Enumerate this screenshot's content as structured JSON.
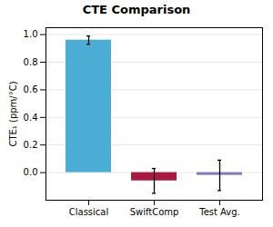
{
  "chart_data": {
    "type": "bar",
    "title": "CTE Comparison",
    "ylabel": "CTE₁ (ppm/°C)",
    "categories": [
      "Classical",
      "SwiftComp",
      "Test Avg."
    ],
    "values": [
      0.96,
      -0.06,
      -0.02
    ],
    "errors": [
      0.03,
      0.09,
      0.11
    ],
    "colors": [
      "#4badd3",
      "#aa1942",
      "#8878c3"
    ],
    "ylim": [
      -0.2,
      1.05
    ],
    "yticks": [
      {
        "value": 0.0,
        "label": "0.0"
      },
      0.2,
      0.4,
      0.6,
      0.8,
      {
        "value": 1.0,
        "label": "1.0"
      }
    ],
    "grid": true
  }
}
